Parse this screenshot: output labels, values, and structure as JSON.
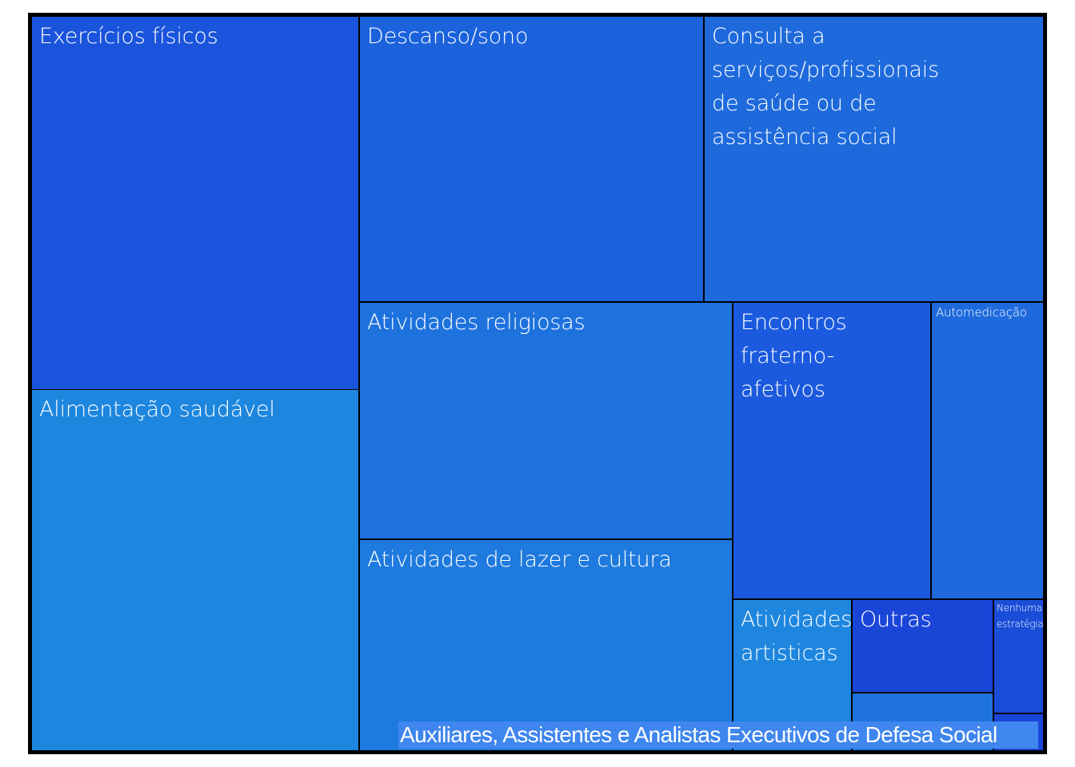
{
  "chart_data": {
    "type": "treemap",
    "title": "",
    "caption": "Auxiliares, Assistentes e Analistas Executivos de Defesa Social",
    "items": [
      {
        "label": "Exercícios físicos",
        "value": 18.8,
        "color": "#1b54dc"
      },
      {
        "label": "Alimentação saudável",
        "value": 18.1,
        "color": "#1d86de"
      },
      {
        "label": "Descanso/sono",
        "value": 11.6,
        "color": "#1b62dc"
      },
      {
        "label": "Consulta a serviços/profissionais de saúde ou de assistência social",
        "value": 11.3,
        "color": "#1e6adc"
      },
      {
        "label": "Atividades religiosas",
        "value": 10.3,
        "color": "#1e72de"
      },
      {
        "label": "Atividades de lazer e cultura",
        "value": 9.6,
        "color": "#1e7ade"
      },
      {
        "label": "Encontros fraterno-afetivos",
        "value": 6.7,
        "color": "#1b5ade"
      },
      {
        "label": "Automedicação",
        "value": 4.0,
        "color": "#1e6adc"
      },
      {
        "label": "Atividades artisticas",
        "value": 2.5,
        "color": "#1e86de"
      },
      {
        "label": "Outras",
        "value": 1.6,
        "color": "#1a46d8"
      },
      {
        "label": "",
        "value": 1.1,
        "color": "#1e72de"
      },
      {
        "label": "Nenhuma estratégia",
        "value": 1.0,
        "color": "#1a4ed8"
      },
      {
        "label": "",
        "value": 0.3,
        "color": "#1a46d8"
      }
    ]
  }
}
